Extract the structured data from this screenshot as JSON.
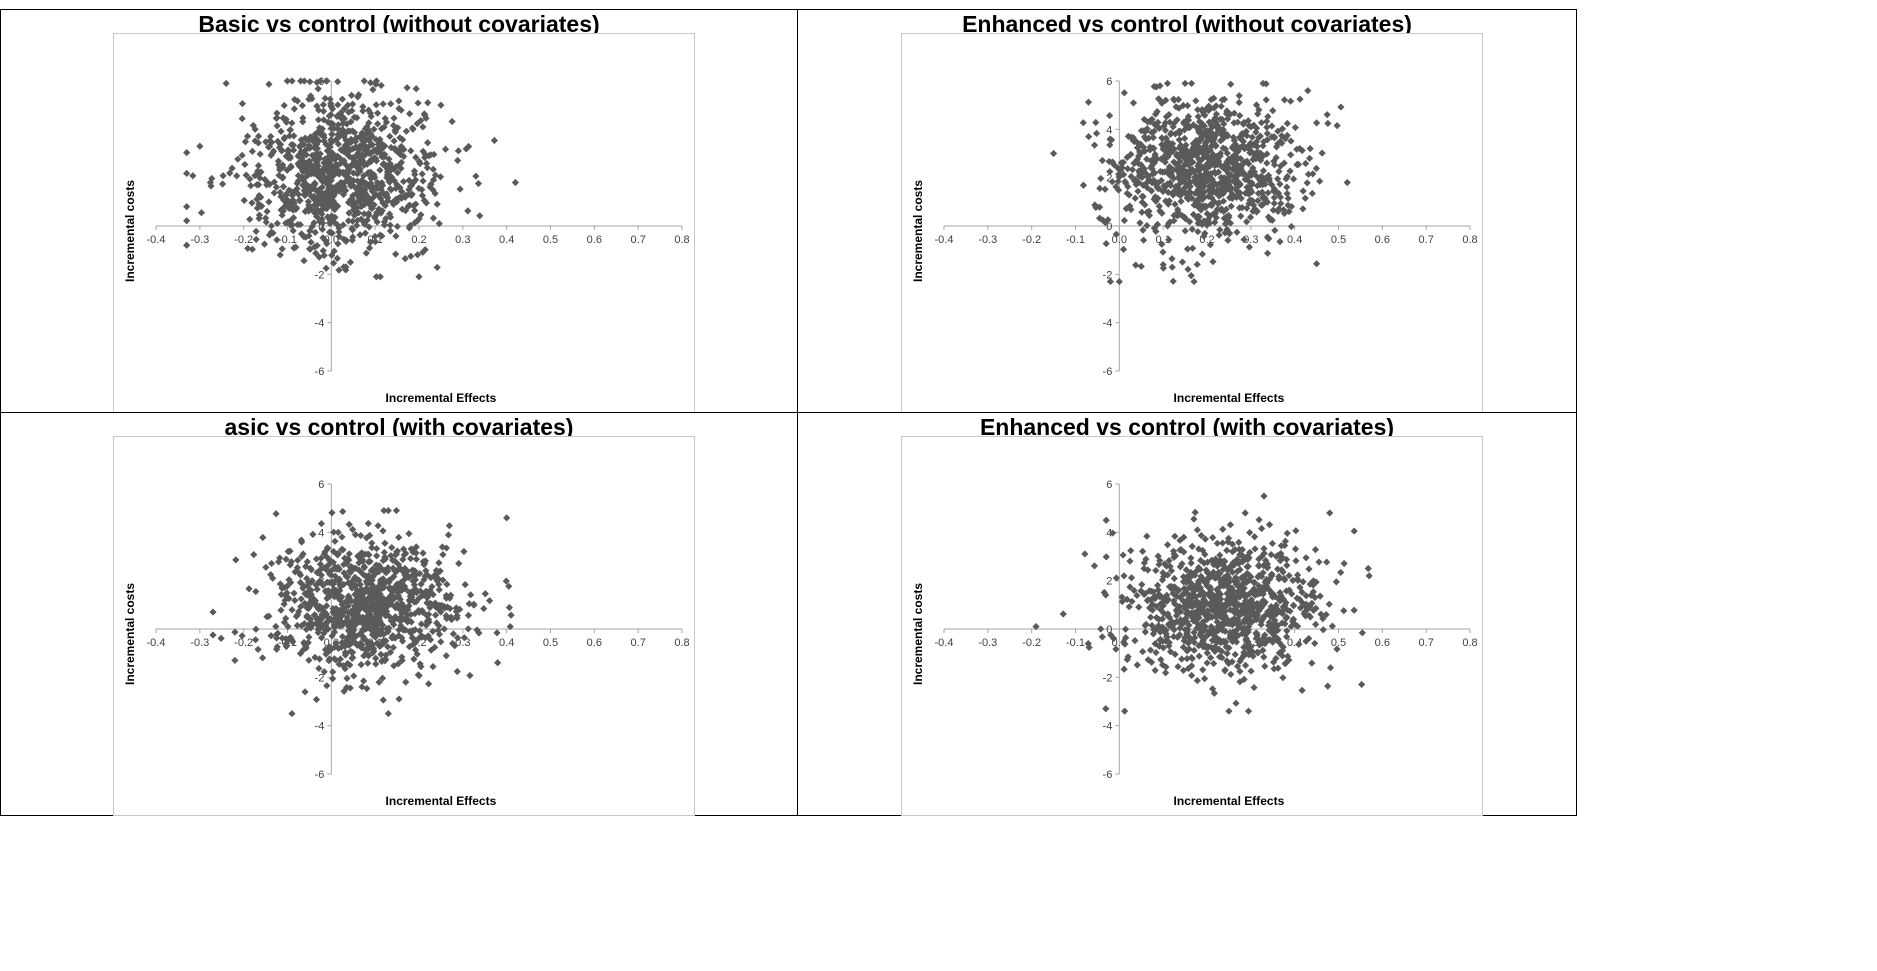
{
  "chart_data": [
    {
      "type": "scatter",
      "title": "Basic vs control (without covariates)",
      "xlabel": "Incremental Effects",
      "ylabel": "Incremental costs",
      "xlim": [
        -0.4,
        0.8
      ],
      "ylim": [
        -6,
        6
      ],
      "xticks": [
        "-0.4",
        "-0.3",
        "-0.2",
        "-0.1",
        "0.0",
        "0.1",
        "0.2",
        "0.3",
        "0.4",
        "0.5",
        "0.6",
        "0.7",
        "0.8"
      ],
      "yticks": [
        "-6",
        "-4",
        "-2",
        "0",
        "2",
        "4",
        "6"
      ],
      "grid": false,
      "marker": "diamond",
      "color": "#5a5a5a",
      "point_count": 1000,
      "mean": [
        0.02,
        2.1
      ],
      "sd": [
        0.11,
        1.55
      ],
      "x_range_observed": [
        -0.33,
        0.42
      ],
      "y_range_observed": [
        -2.1,
        6.0
      ],
      "points": [
        [
          -0.33,
          0.8
        ],
        [
          -0.3,
          3.3
        ],
        [
          -0.24,
          5.9
        ],
        [
          0.42,
          1.8
        ],
        [
          0.2,
          -2.1
        ],
        [
          -0.07,
          6.0
        ],
        [
          0.25,
          5.0
        ],
        [
          0.22,
          5.1
        ]
      ]
    },
    {
      "type": "scatter",
      "title": "Enhanced vs control (without covariates)",
      "xlabel": "Incremental Effects",
      "ylabel": "Incremental costs",
      "xlim": [
        -0.4,
        0.8
      ],
      "ylim": [
        -6,
        6
      ],
      "xticks": [
        "-0.4",
        "-0.3",
        "-0.2",
        "-0.1",
        "0.0",
        "0.1",
        "0.2",
        "0.3",
        "0.4",
        "0.5",
        "0.6",
        "0.7",
        "0.8"
      ],
      "yticks": [
        "-6",
        "-4",
        "-2",
        "0",
        "2",
        "4",
        "6"
      ],
      "grid": false,
      "marker": "diamond",
      "color": "#5a5a5a",
      "point_count": 1000,
      "mean": [
        0.19,
        2.4
      ],
      "sd": [
        0.11,
        1.45
      ],
      "x_range_observed": [
        -0.15,
        0.52
      ],
      "y_range_observed": [
        -2.3,
        5.9
      ],
      "points": [
        [
          -0.15,
          3.0
        ],
        [
          0.52,
          1.8
        ],
        [
          0.0,
          -2.3
        ],
        [
          0.1,
          -1.6
        ],
        [
          0.15,
          5.9
        ],
        [
          0.43,
          5.6
        ],
        [
          -0.07,
          3.7
        ]
      ]
    },
    {
      "type": "scatter",
      "title": "asic vs control (with covariates)",
      "xlabel": "Incremental Effects",
      "ylabel": "Incremental costs",
      "xlim": [
        -0.4,
        0.8
      ],
      "ylim": [
        -6,
        6
      ],
      "xticks": [
        "-0.4",
        "-0.3",
        "-0.2",
        "-0.1",
        "0.0",
        "0.1",
        "0.2",
        "0.3",
        "0.4",
        "0.5",
        "0.6",
        "0.7",
        "0.8"
      ],
      "yticks": [
        "-6",
        "-4",
        "-2",
        "0",
        "2",
        "4",
        "6"
      ],
      "grid": false,
      "marker": "diamond",
      "color": "#5a5a5a",
      "point_count": 1000,
      "mean": [
        0.08,
        1.0
      ],
      "sd": [
        0.11,
        1.35
      ],
      "x_range_observed": [
        -0.27,
        0.41
      ],
      "y_range_observed": [
        -3.5,
        4.9
      ],
      "points": [
        [
          -0.27,
          0.7
        ],
        [
          -0.22,
          -1.3
        ],
        [
          0.4,
          4.6
        ],
        [
          0.13,
          -3.5
        ],
        [
          0.13,
          4.9
        ],
        [
          -0.06,
          -2.6
        ]
      ]
    },
    {
      "type": "scatter",
      "title": "Enhanced vs control (with covariates)",
      "xlabel": "Incremental Effects",
      "ylabel": "Incremental costs",
      "xlim": [
        -0.4,
        0.8
      ],
      "ylim": [
        -6,
        6
      ],
      "xticks": [
        "-0.4",
        "-0.3",
        "-0.2",
        "-0.1",
        "0.0",
        "0.1",
        "0.2",
        "0.3",
        "0.4",
        "0.5",
        "0.6",
        "0.7",
        "0.8"
      ],
      "yticks": [
        "-6",
        "-4",
        "-2",
        "0",
        "2",
        "4",
        "6"
      ],
      "grid": false,
      "marker": "diamond",
      "color": "#5a5a5a",
      "point_count": 1000,
      "mean": [
        0.24,
        0.9
      ],
      "sd": [
        0.11,
        1.35
      ],
      "x_range_observed": [
        -0.19,
        0.57
      ],
      "y_range_observed": [
        -3.4,
        5.5
      ],
      "points": [
        [
          -0.19,
          0.1
        ],
        [
          0.57,
          2.2
        ],
        [
          0.25,
          -3.4
        ],
        [
          0.33,
          5.5
        ],
        [
          -0.03,
          4.5
        ],
        [
          0.48,
          4.8
        ]
      ]
    }
  ]
}
